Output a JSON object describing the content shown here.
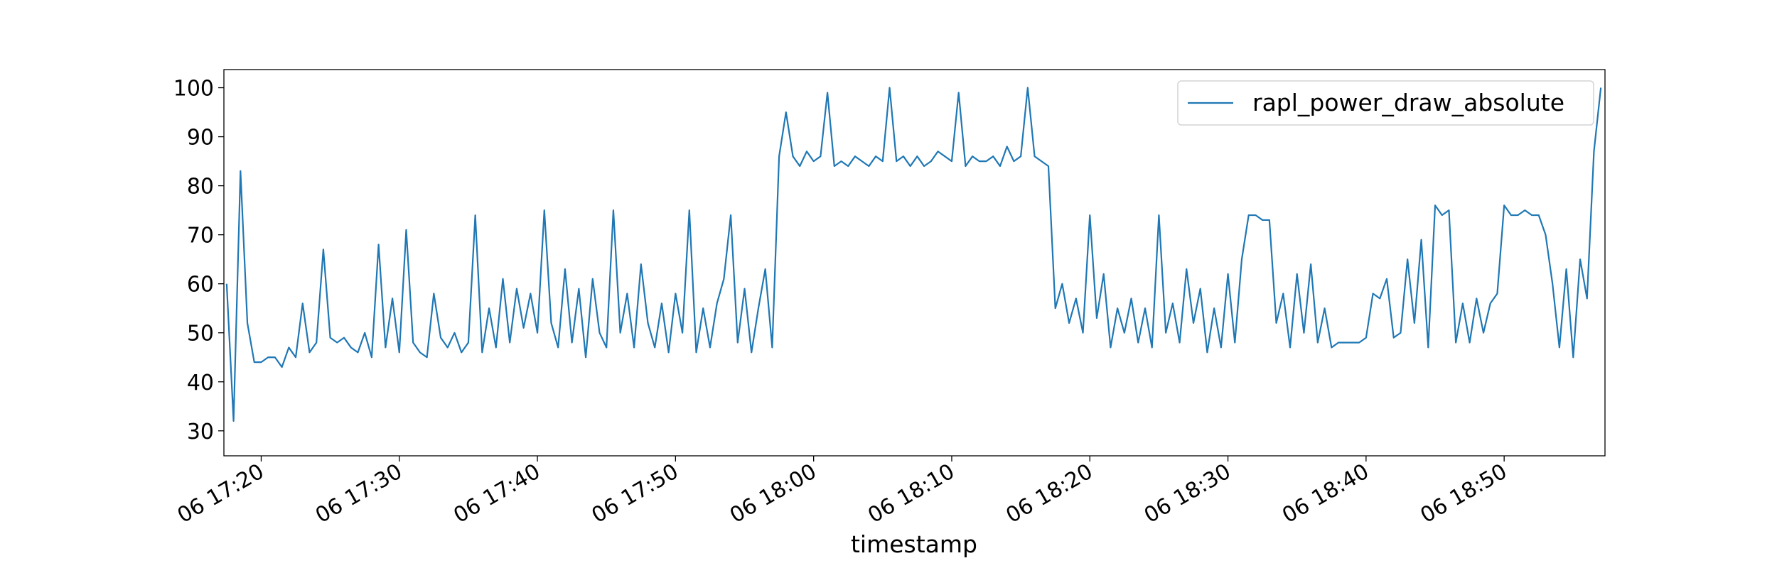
{
  "chart_data": {
    "type": "line",
    "xlabel": "timestamp",
    "x": [
      1037.5,
      1038,
      1038.5,
      1039,
      1039.5,
      1040,
      1040.5,
      1041,
      1041.5,
      1042,
      1042.5,
      1043,
      1043.5,
      1044,
      1044.5,
      1045,
      1045.5,
      1046,
      1046.5,
      1047,
      1047.5,
      1048,
      1048.5,
      1049,
      1049.5,
      1050,
      1050.5,
      1051,
      1051.5,
      1052,
      1052.5,
      1053,
      1053.5,
      1054,
      1054.5,
      1055,
      1055.5,
      1056,
      1056.5,
      1057,
      1057.5,
      1058,
      1058.5,
      1059,
      1059.5,
      1060,
      1060.5,
      1061,
      1061.5,
      1062,
      1062.5,
      1063,
      1063.5,
      1064,
      1064.5,
      1065,
      1065.5,
      1066,
      1066.5,
      1067,
      1067.5,
      1068,
      1068.5,
      1069,
      1069.5,
      1070,
      1070.5,
      1071,
      1071.5,
      1072,
      1072.5,
      1073,
      1073.5,
      1074,
      1074.5,
      1075,
      1075.5,
      1076,
      1076.5,
      1077,
      1077.5,
      1078,
      1078.5,
      1079,
      1079.5,
      1080,
      1080.5,
      1081,
      1081.5,
      1082,
      1082.5,
      1083,
      1083.5,
      1084,
      1084.5,
      1085,
      1085.5,
      1086,
      1086.5,
      1087,
      1087.5,
      1088,
      1088.5,
      1089,
      1089.5,
      1090,
      1090.5,
      1091,
      1091.5,
      1092,
      1092.5,
      1093,
      1093.5,
      1094,
      1094.5,
      1095,
      1095.5,
      1096,
      1096.5,
      1097,
      1097.5,
      1098,
      1098.5,
      1099,
      1099.5,
      1100,
      1100.5,
      1101,
      1101.5,
      1102,
      1102.5,
      1103,
      1103.5,
      1104,
      1104.5,
      1105,
      1105.5,
      1106,
      1106.5,
      1107,
      1107.5,
      1108,
      1108.5,
      1109,
      1109.5,
      1110,
      1110.5,
      1111,
      1111.5,
      1112,
      1112.5,
      1113,
      1113.5,
      1114,
      1114.5,
      1115,
      1115.5,
      1116,
      1116.5,
      1117,
      1117.5,
      1118,
      1118.5,
      1119,
      1119.5,
      1120,
      1120.5,
      1121,
      1121.5,
      1122,
      1122.5,
      1123,
      1123.5,
      1124,
      1124.5,
      1125,
      1125.5,
      1126,
      1126.5,
      1127,
      1127.5,
      1128,
      1128.5,
      1129,
      1129.5,
      1130,
      1130.5,
      1131,
      1131.5,
      1132,
      1132.5,
      1133,
      1133.5,
      1134,
      1134.5,
      1135,
      1135.5,
      1136,
      1136.5,
      1137
    ],
    "series": [
      {
        "name": "rapl_power_draw_absolute",
        "color": "#1f77b4",
        "values": [
          60,
          32,
          83,
          52,
          44,
          44,
          45,
          45,
          43,
          47,
          45,
          56,
          46,
          48,
          67,
          49,
          48,
          49,
          47,
          46,
          50,
          45,
          68,
          47,
          57,
          46,
          71,
          48,
          46,
          45,
          58,
          49,
          47,
          50,
          46,
          48,
          74,
          46,
          55,
          47,
          61,
          48,
          59,
          51,
          58,
          50,
          75,
          52,
          47,
          63,
          48,
          59,
          45,
          61,
          50,
          47,
          75,
          50,
          58,
          47,
          64,
          52,
          47,
          56,
          46,
          58,
          50,
          75,
          46,
          55,
          47,
          56,
          61,
          74,
          48,
          59,
          46,
          55,
          63,
          47,
          86,
          95,
          86,
          84,
          87,
          85,
          86,
          99,
          84,
          85,
          84,
          86,
          85,
          84,
          86,
          85,
          100,
          85,
          86,
          84,
          86,
          84,
          85,
          87,
          86,
          85,
          99,
          84,
          86,
          85,
          85,
          86,
          84,
          88,
          85,
          86,
          100,
          86,
          85,
          84,
          55,
          60,
          52,
          57,
          50,
          74,
          53,
          62,
          47,
          55,
          50,
          57,
          48,
          55,
          47,
          74,
          50,
          56,
          48,
          63,
          52,
          59,
          46,
          55,
          47,
          62,
          48,
          65,
          74,
          74,
          73,
          73,
          52,
          58,
          47,
          62,
          50,
          64,
          48,
          55,
          47,
          48,
          48,
          48,
          48,
          49,
          58,
          57,
          61,
          49,
          50,
          65,
          52,
          69,
          47,
          76,
          74,
          75,
          48,
          56,
          48,
          57,
          50,
          56,
          58,
          76,
          74,
          74,
          75,
          74,
          74,
          70,
          60,
          47,
          63,
          45,
          65,
          57,
          87,
          100
        ]
      }
    ],
    "xlim": [
      1037.3,
      1137.3
    ],
    "ylim": [
      24.9,
      103.7
    ],
    "xticks": [
      {
        "value": 1040,
        "label": "06 17:20"
      },
      {
        "value": 1050,
        "label": "06 17:30"
      },
      {
        "value": 1060,
        "label": "06 17:40"
      },
      {
        "value": 1070,
        "label": "06 17:50"
      },
      {
        "value": 1080,
        "label": "06 18:00"
      },
      {
        "value": 1090,
        "label": "06 18:10"
      },
      {
        "value": 1100,
        "label": "06 18:20"
      },
      {
        "value": 1110,
        "label": "06 18:30"
      },
      {
        "value": 1120,
        "label": "06 18:40"
      },
      {
        "value": 1130,
        "label": "06 18:50"
      }
    ],
    "yticks": [
      30,
      40,
      50,
      60,
      70,
      80,
      90,
      100
    ],
    "legend": "upper right"
  }
}
